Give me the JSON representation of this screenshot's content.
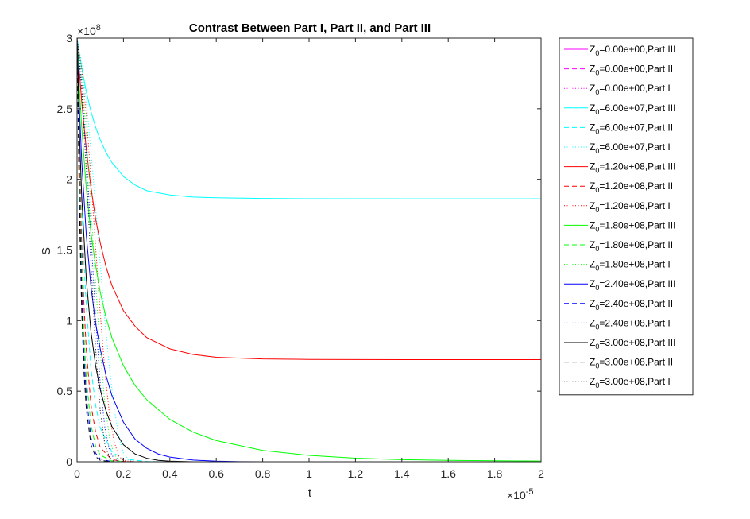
{
  "chart_data": {
    "type": "line",
    "title": "Contrast Between Part I, Part II, and Part III",
    "xlabel": "t",
    "ylabel": "S",
    "xlim": [
      0,
      2e-05
    ],
    "ylim": [
      0,
      300000000
    ],
    "x_ticks": [
      "0",
      "0.2",
      "0.4",
      "0.6",
      "0.8",
      "1",
      "1.2",
      "1.4",
      "1.6",
      "1.8",
      "2"
    ],
    "y_ticks": [
      "0",
      "0.5",
      "1",
      "1.5",
      "2",
      "2.5",
      "3"
    ],
    "x_exponent_label": "×10",
    "x_exponent_power": "-5",
    "y_exponent_label": "×10",
    "y_exponent_power": "8",
    "grid": false,
    "legend_position": "outside-right",
    "series": [
      {
        "name": "Z0=0.00e+00,Part III",
        "legend_prefix": "Z",
        "legend_sub": "0",
        "legend_rest": "=0.00e+00,Part III",
        "color": "#ff00ff",
        "style": "solid",
        "x": [
          0,
          2e-05
        ],
        "y": [
          300000000,
          300000000
        ]
      },
      {
        "name": "Z0=0.00e+00,Part II",
        "legend_prefix": "Z",
        "legend_sub": "0",
        "legend_rest": "=0.00e+00,Part II",
        "color": "#ff00ff",
        "style": "dashed",
        "x": [
          0,
          2e-05
        ],
        "y": [
          300000000,
          300000000
        ]
      },
      {
        "name": "Z0=0.00e+00,Part I",
        "legend_prefix": "Z",
        "legend_sub": "0",
        "legend_rest": "=0.00e+00,Part I",
        "color": "#ff00ff",
        "style": "dotted",
        "x": [
          0,
          2e-05
        ],
        "y": [
          300000000,
          300000000
        ]
      },
      {
        "name": "Z0=6.00e+07,Part III",
        "legend_prefix": "Z",
        "legend_sub": "0",
        "legend_rest": "=6.00e+07,Part III",
        "color": "#00ffff",
        "style": "solid",
        "x": [
          0,
          1e-07,
          2e-07,
          4e-07,
          6e-07,
          8e-07,
          1e-06,
          1.25e-06,
          1.5e-06,
          2e-06,
          2.5e-06,
          3e-06,
          4e-06,
          5e-06,
          6e-06,
          8e-06,
          1e-05,
          1.5e-05,
          2e-05
        ],
        "y": [
          300000000,
          289000000,
          279000000,
          262000000,
          248000000,
          237000000,
          228000000,
          219000000,
          212000000,
          202000000,
          196000000,
          192000000,
          189000000,
          187500000,
          187000000,
          186500000,
          186300000,
          186200000,
          186200000
        ]
      },
      {
        "name": "Z0=6.00e+07,Part II",
        "legend_prefix": "Z",
        "legend_sub": "0",
        "legend_rest": "=6.00e+07,Part II",
        "color": "#00ffff",
        "style": "dashed",
        "x": [
          0,
          1e-07,
          2e-07,
          3e-07,
          4e-07,
          6e-07,
          8e-07,
          1e-06,
          1.5e-06,
          2e-06,
          3e-06,
          4e-06
        ],
        "y": [
          300000000,
          233000000,
          181000000,
          141000000,
          110000000,
          66000000,
          40000000,
          24000000,
          7000000,
          2000000,
          200000,
          0
        ]
      },
      {
        "name": "Z0=6.00e+07,Part I",
        "legend_prefix": "Z",
        "legend_sub": "0",
        "legend_rest": "=6.00e+07,Part I",
        "color": "#00ffff",
        "style": "dotted",
        "x": [
          0,
          2e-07,
          4e-07,
          6e-07,
          8e-07,
          1e-06,
          1.2e-06,
          1.4e-06,
          1.6e-06,
          1.8e-06,
          2e-06,
          2.2e-06,
          2.5e-06,
          3e-06
        ],
        "y": [
          300000000,
          282000000,
          255000000,
          220000000,
          180000000,
          140000000,
          100000000,
          66000000,
          38000000,
          18000000,
          6000000,
          1500000,
          0,
          0
        ]
      },
      {
        "name": "Z0=1.20e+08,Part III",
        "legend_prefix": "Z",
        "legend_sub": "0",
        "legend_rest": "=1.20e+08,Part III",
        "color": "#ff0000",
        "style": "solid",
        "x": [
          0,
          1e-07,
          2e-07,
          4e-07,
          6e-07,
          8e-07,
          1e-06,
          1.25e-06,
          1.5e-06,
          2e-06,
          2.5e-06,
          3e-06,
          4e-06,
          5e-06,
          6e-06,
          8e-06,
          1e-05,
          1.2e-05,
          1.5e-05,
          2e-05
        ],
        "y": [
          300000000,
          276000000,
          255000000,
          221000000,
          194000000,
          172000000,
          155000000,
          138000000,
          125000000,
          107000000,
          96000000,
          88000000,
          80000000,
          76000000,
          74000000,
          72800000,
          72500000,
          72400000,
          72300000,
          72300000
        ]
      },
      {
        "name": "Z0=1.20e+08,Part II",
        "legend_prefix": "Z",
        "legend_sub": "0",
        "legend_rest": "=1.20e+08,Part II",
        "color": "#ff0000",
        "style": "dashed",
        "x": [
          0,
          1e-07,
          2e-07,
          3e-07,
          4e-07,
          6e-07,
          8e-07,
          1e-06,
          1.5e-06,
          2e-06,
          3e-06
        ],
        "y": [
          300000000,
          215000000,
          154000000,
          110000000,
          79000000,
          40000000,
          21000000,
          10000000,
          1500000,
          200000,
          0
        ]
      },
      {
        "name": "Z0=1.20e+08,Part I",
        "legend_prefix": "Z",
        "legend_sub": "0",
        "legend_rest": "=1.20e+08,Part I",
        "color": "#ff0000",
        "style": "dotted",
        "x": [
          0,
          2e-07,
          4e-07,
          6e-07,
          8e-07,
          1e-06,
          1.2e-06,
          1.4e-06,
          1.6e-06,
          1.8e-06,
          2e-06,
          2.5e-06
        ],
        "y": [
          300000000,
          278000000,
          245000000,
          200000000,
          152000000,
          105000000,
          64000000,
          33000000,
          14000000,
          4000000,
          800000,
          0
        ]
      },
      {
        "name": "Z0=1.80e+08,Part III",
        "legend_prefix": "Z",
        "legend_sub": "0",
        "legend_rest": "=1.80e+08,Part III",
        "color": "#00ff00",
        "style": "solid",
        "x": [
          0,
          1e-07,
          2e-07,
          4e-07,
          6e-07,
          8e-07,
          1e-06,
          1.25e-06,
          1.5e-06,
          2e-06,
          2.5e-06,
          3e-06,
          4e-06,
          5e-06,
          6e-06,
          8e-06,
          1e-05,
          1.2e-05,
          1.4e-05,
          1.6e-05,
          1.8e-05,
          2e-05
        ],
        "y": [
          300000000,
          265000000,
          237000000,
          193000000,
          162000000,
          139000000,
          120000000,
          102000000,
          88000000,
          68000000,
          54000000,
          44000000,
          30000000,
          21000000,
          15000000,
          8000000,
          4500000,
          2500000,
          1500000,
          1000000,
          700000,
          500000
        ]
      },
      {
        "name": "Z0=1.80e+08,Part II",
        "legend_prefix": "Z",
        "legend_sub": "0",
        "legend_rest": "=1.80e+08,Part II",
        "color": "#00ff00",
        "style": "dashed",
        "x": [
          0,
          1e-07,
          2e-07,
          3e-07,
          4e-07,
          6e-07,
          8e-07,
          1e-06,
          1.5e-06,
          2e-06
        ],
        "y": [
          300000000,
          201000000,
          134000000,
          89000000,
          59000000,
          26000000,
          11000000,
          4800000,
          500000,
          0
        ]
      },
      {
        "name": "Z0=1.80e+08,Part I",
        "legend_prefix": "Z",
        "legend_sub": "0",
        "legend_rest": "=1.80e+08,Part I",
        "color": "#00ff00",
        "style": "dotted",
        "x": [
          0,
          2e-07,
          4e-07,
          6e-07,
          8e-07,
          1e-06,
          1.2e-06,
          1.4e-06,
          1.6e-06,
          1.8e-06,
          2e-06
        ],
        "y": [
          300000000,
          273000000,
          232000000,
          180000000,
          126000000,
          78000000,
          41000000,
          17000000,
          5000000,
          1000000,
          0
        ]
      },
      {
        "name": "Z0=2.40e+08,Part III",
        "legend_prefix": "Z",
        "legend_sub": "0",
        "legend_rest": "=2.40e+08,Part III",
        "color": "#0000ff",
        "style": "solid",
        "x": [
          0,
          1e-07,
          2e-07,
          4e-07,
          6e-07,
          8e-07,
          1e-06,
          1.25e-06,
          1.5e-06,
          2e-06,
          2.5e-06,
          3e-06,
          3.5e-06,
          4e-06,
          5e-06,
          6e-06,
          7e-06,
          8e-06,
          1e-05,
          1.5e-05,
          2e-05
        ],
        "y": [
          300000000,
          251000000,
          213000000,
          160000000,
          124000000,
          98000000,
          80000000,
          61000000,
          47000000,
          28000000,
          16000000,
          9500000,
          5500000,
          3300000,
          1200000,
          400000,
          100000,
          0,
          0,
          0,
          0
        ]
      },
      {
        "name": "Z0=2.40e+08,Part II",
        "legend_prefix": "Z",
        "legend_sub": "0",
        "legend_rest": "=2.40e+08,Part II",
        "color": "#0000ff",
        "style": "dashed",
        "x": [
          0,
          1e-07,
          2e-07,
          3e-07,
          4e-07,
          6e-07,
          8e-07,
          1e-06,
          1.5e-06
        ],
        "y": [
          300000000,
          190000000,
          120000000,
          75000000,
          46000000,
          17000000,
          6000000,
          2000000,
          0
        ]
      },
      {
        "name": "Z0=2.40e+08,Part I",
        "legend_prefix": "Z",
        "legend_sub": "0",
        "legend_rest": "=2.40e+08,Part I",
        "color": "#0000ff",
        "style": "dotted",
        "x": [
          0,
          2e-07,
          4e-07,
          6e-07,
          8e-07,
          1e-06,
          1.2e-06,
          1.4e-06,
          1.6e-06,
          1.8e-06
        ],
        "y": [
          300000000,
          268000000,
          218000000,
          160000000,
          102000000,
          55000000,
          24000000,
          8000000,
          2000000,
          0
        ]
      },
      {
        "name": "Z0=3.00e+08,Part III",
        "legend_prefix": "Z",
        "legend_sub": "0",
        "legend_rest": "=3.00e+08,Part III",
        "color": "#000000",
        "style": "solid",
        "x": [
          0,
          1e-07,
          2e-07,
          4e-07,
          6e-07,
          8e-07,
          1e-06,
          1.25e-06,
          1.5e-06,
          2e-06,
          2.5e-06,
          3e-06,
          3.5e-06,
          4e-06,
          5e-06,
          6e-06,
          2e-05
        ],
        "y": [
          300000000,
          234000000,
          188000000,
          129000000,
          92000000,
          68000000,
          51000000,
          36000000,
          25000000,
          12000000,
          5500000,
          2500000,
          1000000,
          400000,
          0,
          0,
          0
        ]
      },
      {
        "name": "Z0=3.00e+08,Part II",
        "legend_prefix": "Z",
        "legend_sub": "0",
        "legend_rest": "=3.00e+08,Part II",
        "color": "#000000",
        "style": "dashed",
        "x": [
          0,
          1e-07,
          2e-07,
          3e-07,
          4e-07,
          6e-07,
          8e-07,
          1e-06,
          1.5e-06
        ],
        "y": [
          300000000,
          180000000,
          107000000,
          63000000,
          37000000,
          12000000,
          3600000,
          1000000,
          0
        ]
      },
      {
        "name": "Z0=3.00e+08,Part I",
        "legend_prefix": "Z",
        "legend_sub": "0",
        "legend_rest": "=3.00e+08,Part I",
        "color": "#000000",
        "style": "dotted",
        "x": [
          0,
          2e-07,
          4e-07,
          6e-07,
          8e-07,
          1e-06,
          1.2e-06,
          1.4e-06,
          1.6e-06
        ],
        "y": [
          300000000,
          263000000,
          205000000,
          140000000,
          80000000,
          36000000,
          12000000,
          3000000,
          0
        ]
      }
    ]
  }
}
